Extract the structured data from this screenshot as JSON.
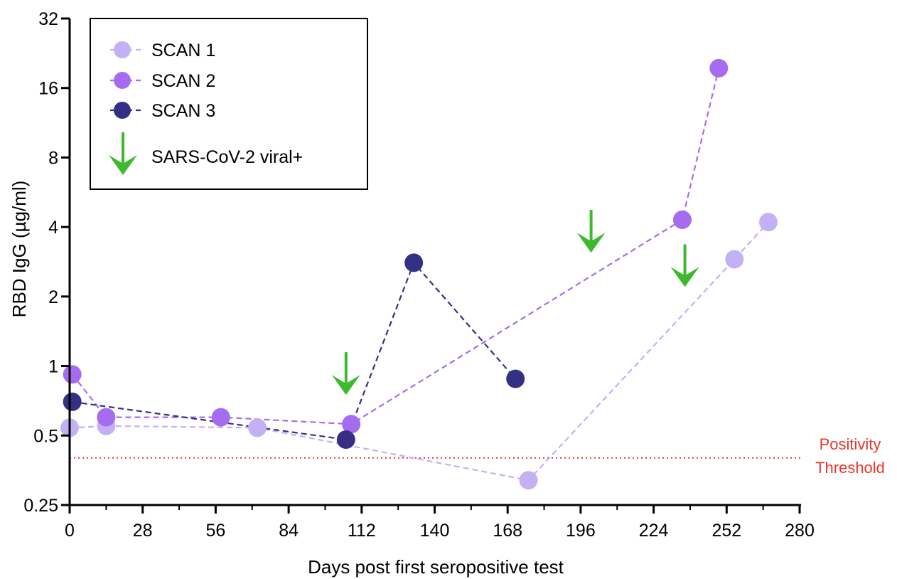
{
  "chart_data": {
    "type": "scatter",
    "xlabel": "Days post first seropositive test",
    "ylabel": "RBD IgG (µg/ml)",
    "xlim": [
      0,
      280
    ],
    "ylim": [
      0.25,
      32
    ],
    "yscale": "log2",
    "x_ticks": [
      0,
      28,
      56,
      84,
      112,
      140,
      168,
      196,
      224,
      252,
      280
    ],
    "y_ticks": [
      0.25,
      0.5,
      1,
      2,
      4,
      8,
      16,
      32
    ],
    "x_tick_labels": [
      "0",
      "28",
      "56",
      "84",
      "112",
      "140",
      "168",
      "196",
      "224",
      "252",
      "280"
    ],
    "y_tick_labels": [
      "0.25",
      "0.5",
      "1",
      "2",
      "4",
      "8",
      "16",
      "32"
    ],
    "grid": false,
    "legend_position": "top-left",
    "series": [
      {
        "name": "SCAN 1",
        "color": "#c4b1f3",
        "x": [
          0,
          14,
          72,
          176,
          255,
          268
        ],
        "y": [
          0.54,
          0.55,
          0.54,
          0.32,
          2.9,
          4.2
        ]
      },
      {
        "name": "SCAN 2",
        "color": "#a66cf0",
        "x": [
          1,
          14,
          58,
          108,
          235,
          249
        ],
        "y": [
          0.92,
          0.6,
          0.6,
          0.56,
          4.3,
          19.5
        ]
      },
      {
        "name": "SCAN 3",
        "color": "#363085",
        "x": [
          1,
          106,
          132,
          171
        ],
        "y": [
          0.7,
          0.48,
          2.8,
          0.88
        ]
      }
    ],
    "viral_positive": {
      "label": "SARS-CoV-2 viral+",
      "color": "#3cb92c",
      "x": [
        106,
        200,
        236
      ],
      "y": [
        0.75,
        3.1,
        2.2
      ]
    },
    "threshold": {
      "value": 0.4,
      "label_line1": "Positivity",
      "label_line2": "Threshold",
      "color": "#e8372b"
    }
  }
}
